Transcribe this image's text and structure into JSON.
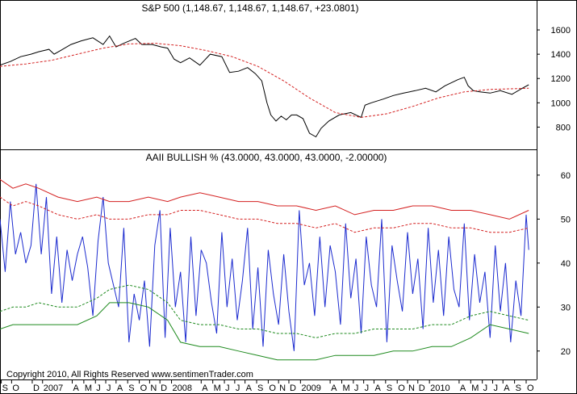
{
  "chart_data": [
    {
      "type": "line",
      "title": "S&P 500 (1,148.67, 1,148.67, 1,148.67, +23.0801)",
      "ylim": [
        650,
        1700
      ],
      "yticks": [
        800,
        1000,
        1200,
        1400,
        1600
      ],
      "x_range": [
        2006.7,
        2010.83
      ],
      "grid": false,
      "series": [
        {
          "color": "#000000",
          "style": "solid",
          "x": [
            2006.7,
            2006.78,
            2006.86,
            2006.94,
            2007.0,
            2007.08,
            2007.12,
            2007.17,
            2007.25,
            2007.33,
            2007.42,
            2007.5,
            2007.55,
            2007.6,
            2007.66,
            2007.75,
            2007.8,
            2007.88,
            2007.95,
            2008.0,
            2008.05,
            2008.1,
            2008.17,
            2008.25,
            2008.33,
            2008.42,
            2008.48,
            2008.55,
            2008.62,
            2008.68,
            2008.73,
            2008.77,
            2008.8,
            2008.84,
            2008.88,
            2008.92,
            2008.96,
            2009.0,
            2009.05,
            2009.1,
            2009.15,
            2009.19,
            2009.25,
            2009.33,
            2009.42,
            2009.5,
            2009.53,
            2009.58,
            2009.67,
            2009.75,
            2009.83,
            2009.92,
            2010.0,
            2010.08,
            2010.15,
            2010.25,
            2010.3,
            2010.33,
            2010.37,
            2010.42,
            2010.5,
            2010.58,
            2010.67,
            2010.75,
            2010.8
          ],
          "y": [
            1310,
            1340,
            1380,
            1400,
            1420,
            1440,
            1400,
            1430,
            1480,
            1510,
            1535,
            1480,
            1550,
            1460,
            1490,
            1530,
            1480,
            1480,
            1460,
            1450,
            1360,
            1330,
            1370,
            1310,
            1400,
            1380,
            1250,
            1260,
            1290,
            1240,
            1180,
            1000,
            900,
            850,
            890,
            860,
            900,
            900,
            870,
            750,
            720,
            790,
            850,
            900,
            920,
            880,
            980,
            1000,
            1030,
            1060,
            1080,
            1100,
            1120,
            1090,
            1140,
            1190,
            1210,
            1140,
            1100,
            1090,
            1080,
            1100,
            1070,
            1120,
            1148.67
          ]
        },
        {
          "color": "#d42020",
          "style": "dashed",
          "x": [
            2006.7,
            2006.9,
            2007.1,
            2007.3,
            2007.5,
            2007.7,
            2007.9,
            2008.1,
            2008.3,
            2008.5,
            2008.7,
            2008.9,
            2009.1,
            2009.3,
            2009.5,
            2009.7,
            2009.9,
            2010.1,
            2010.3,
            2010.5,
            2010.8
          ],
          "y": [
            1300,
            1320,
            1350,
            1400,
            1450,
            1485,
            1490,
            1470,
            1430,
            1380,
            1300,
            1180,
            1040,
            920,
            880,
            910,
            970,
            1040,
            1090,
            1110,
            1120
          ]
        }
      ]
    },
    {
      "type": "line",
      "title": "AAII BULLISH % (43.0000, 43.0000, 43.0000, -2.00000)",
      "ylim": [
        15,
        62
      ],
      "yticks": [
        20,
        30,
        40,
        50,
        60
      ],
      "x_range": [
        2006.7,
        2010.83
      ],
      "grid": false,
      "series": [
        {
          "color": "#1c2bcf",
          "style": "solid",
          "x": [
            2006.7,
            2006.74,
            2006.78,
            2006.82,
            2006.86,
            2006.9,
            2006.94,
            2006.98,
            2007.02,
            2007.06,
            2007.1,
            2007.14,
            2007.18,
            2007.22,
            2007.26,
            2007.3,
            2007.34,
            2007.38,
            2007.42,
            2007.46,
            2007.5,
            2007.54,
            2007.58,
            2007.62,
            2007.66,
            2007.7,
            2007.74,
            2007.78,
            2007.82,
            2007.86,
            2007.9,
            2007.94,
            2007.98,
            2008.02,
            2008.06,
            2008.1,
            2008.14,
            2008.18,
            2008.22,
            2008.26,
            2008.3,
            2008.34,
            2008.38,
            2008.42,
            2008.46,
            2008.5,
            2008.54,
            2008.58,
            2008.62,
            2008.66,
            2008.7,
            2008.74,
            2008.78,
            2008.82,
            2008.86,
            2008.9,
            2008.94,
            2008.98,
            2009.02,
            2009.06,
            2009.1,
            2009.14,
            2009.18,
            2009.22,
            2009.26,
            2009.3,
            2009.34,
            2009.38,
            2009.42,
            2009.46,
            2009.5,
            2009.54,
            2009.58,
            2009.62,
            2009.66,
            2009.7,
            2009.74,
            2009.78,
            2009.82,
            2009.86,
            2009.9,
            2009.94,
            2009.98,
            2010.02,
            2010.06,
            2010.1,
            2010.14,
            2010.18,
            2010.22,
            2010.26,
            2010.3,
            2010.34,
            2010.38,
            2010.42,
            2010.46,
            2010.5,
            2010.54,
            2010.58,
            2010.62,
            2010.66,
            2010.7,
            2010.74,
            2010.78,
            2010.8
          ],
          "y": [
            50,
            38,
            54,
            42,
            47,
            40,
            44,
            58,
            42,
            55,
            33,
            46,
            31,
            43,
            36,
            42,
            46,
            39,
            28,
            45,
            55,
            40,
            35,
            30,
            48,
            22,
            33,
            27,
            36,
            21,
            44,
            52,
            23,
            48,
            30,
            38,
            22,
            46,
            28,
            43,
            40,
            31,
            24,
            47,
            30,
            41,
            27,
            36,
            48,
            25,
            39,
            21,
            43,
            33,
            26,
            42,
            29,
            20,
            52,
            35,
            40,
            28,
            46,
            30,
            44,
            38,
            26,
            49,
            32,
            41,
            24,
            46,
            35,
            30,
            50,
            22,
            44,
            36,
            29,
            47,
            33,
            41,
            25,
            48,
            31,
            43,
            28,
            46,
            34,
            30,
            49,
            27,
            42,
            31,
            38,
            23,
            44,
            29,
            40,
            22,
            36,
            28,
            51,
            43
          ]
        },
        {
          "color": "#d42020",
          "style": "solid",
          "x": [
            2006.7,
            2006.8,
            2006.9,
            2007.0,
            2007.15,
            2007.3,
            2007.45,
            2007.55,
            2007.7,
            2007.85,
            2008.0,
            2008.1,
            2008.25,
            2008.4,
            2008.55,
            2008.7,
            2008.85,
            2009.0,
            2009.15,
            2009.3,
            2009.45,
            2009.6,
            2009.75,
            2009.9,
            2010.05,
            2010.2,
            2010.35,
            2010.5,
            2010.65,
            2010.8
          ],
          "y": [
            59,
            57,
            58,
            57,
            55,
            54,
            55,
            54,
            54,
            55,
            54,
            55,
            56,
            55,
            54,
            54,
            53,
            53,
            52,
            53,
            51,
            52,
            52,
            53,
            53,
            52,
            52,
            51,
            50,
            52
          ]
        },
        {
          "color": "#d42020",
          "style": "dashed",
          "x": [
            2006.7,
            2006.8,
            2006.9,
            2007.0,
            2007.15,
            2007.3,
            2007.45,
            2007.55,
            2007.7,
            2007.85,
            2008.0,
            2008.1,
            2008.25,
            2008.4,
            2008.55,
            2008.7,
            2008.85,
            2009.0,
            2009.15,
            2009.3,
            2009.45,
            2009.6,
            2009.75,
            2009.9,
            2010.05,
            2010.2,
            2010.35,
            2010.5,
            2010.65,
            2010.8
          ],
          "y": [
            55,
            53,
            54,
            53,
            51,
            50,
            51,
            50,
            50,
            51,
            51,
            52,
            52,
            51,
            50,
            50,
            49,
            49,
            48,
            49,
            47,
            48,
            48,
            49,
            49,
            48,
            48,
            47,
            47,
            48
          ]
        },
        {
          "color": "#1e8a1e",
          "style": "dashed",
          "x": [
            2006.7,
            2006.8,
            2006.9,
            2007.0,
            2007.15,
            2007.3,
            2007.45,
            2007.55,
            2007.7,
            2007.85,
            2008.0,
            2008.1,
            2008.25,
            2008.4,
            2008.55,
            2008.7,
            2008.85,
            2009.0,
            2009.15,
            2009.3,
            2009.45,
            2009.6,
            2009.75,
            2009.9,
            2010.05,
            2010.2,
            2010.35,
            2010.5,
            2010.65,
            2010.8
          ],
          "y": [
            29,
            30,
            30,
            31,
            30,
            30,
            32,
            34,
            35,
            34,
            31,
            27,
            26,
            26,
            25,
            25,
            24,
            24,
            23,
            24,
            24,
            25,
            25,
            25,
            26,
            26,
            28,
            29,
            28,
            27
          ]
        },
        {
          "color": "#1e8a1e",
          "style": "solid",
          "x": [
            2006.7,
            2006.8,
            2006.9,
            2007.0,
            2007.15,
            2007.3,
            2007.45,
            2007.55,
            2007.7,
            2007.85,
            2008.0,
            2008.1,
            2008.25,
            2008.4,
            2008.55,
            2008.7,
            2008.85,
            2009.0,
            2009.15,
            2009.3,
            2009.45,
            2009.6,
            2009.75,
            2009.9,
            2010.05,
            2010.2,
            2010.35,
            2010.5,
            2010.65,
            2010.8
          ],
          "y": [
            25,
            26,
            26,
            26,
            26,
            26,
            28,
            31,
            31,
            30,
            27,
            22,
            21,
            21,
            20,
            19,
            18,
            18,
            18,
            19,
            19,
            19,
            20,
            20,
            21,
            21,
            23,
            26,
            25,
            24
          ]
        }
      ]
    }
  ],
  "x_axis": {
    "labels": [
      {
        "text": "S",
        "x": 2006.71
      },
      {
        "text": "O",
        "x": 2006.79
      },
      {
        "text": "D",
        "x": 2006.95
      },
      {
        "text": "2007",
        "x": 2007.03
      },
      {
        "text": "A",
        "x": 2007.26
      },
      {
        "text": "M",
        "x": 2007.35
      },
      {
        "text": "J",
        "x": 2007.44
      },
      {
        "text": "J",
        "x": 2007.52
      },
      {
        "text": "A",
        "x": 2007.6
      },
      {
        "text": "S",
        "x": 2007.69
      },
      {
        "text": "O",
        "x": 2007.78
      },
      {
        "text": "N",
        "x": 2007.86
      },
      {
        "text": "D",
        "x": 2007.94
      },
      {
        "text": "2008",
        "x": 2008.03
      },
      {
        "text": "A",
        "x": 2008.26
      },
      {
        "text": "M",
        "x": 2008.35
      },
      {
        "text": "J",
        "x": 2008.44
      },
      {
        "text": "J",
        "x": 2008.52
      },
      {
        "text": "A",
        "x": 2008.6
      },
      {
        "text": "S",
        "x": 2008.69
      },
      {
        "text": "O",
        "x": 2008.78
      },
      {
        "text": "N",
        "x": 2008.86
      },
      {
        "text": "D",
        "x": 2008.94
      },
      {
        "text": "2009",
        "x": 2009.03
      },
      {
        "text": "A",
        "x": 2009.26
      },
      {
        "text": "M",
        "x": 2009.35
      },
      {
        "text": "J",
        "x": 2009.44
      },
      {
        "text": "J",
        "x": 2009.52
      },
      {
        "text": "A",
        "x": 2009.6
      },
      {
        "text": "S",
        "x": 2009.69
      },
      {
        "text": "O",
        "x": 2009.78
      },
      {
        "text": "N",
        "x": 2009.86
      },
      {
        "text": "D",
        "x": 2009.94
      },
      {
        "text": "2010",
        "x": 2010.03
      },
      {
        "text": "A",
        "x": 2010.26
      },
      {
        "text": "M",
        "x": 2010.35
      },
      {
        "text": "J",
        "x": 2010.44
      },
      {
        "text": "J",
        "x": 2010.52
      },
      {
        "text": "A",
        "x": 2010.6
      },
      {
        "text": "S",
        "x": 2010.69
      },
      {
        "text": "O",
        "x": 2010.78
      }
    ]
  },
  "copyright": "Copyright 2010, All Rights Reserved  www.sentimenTrader.com"
}
